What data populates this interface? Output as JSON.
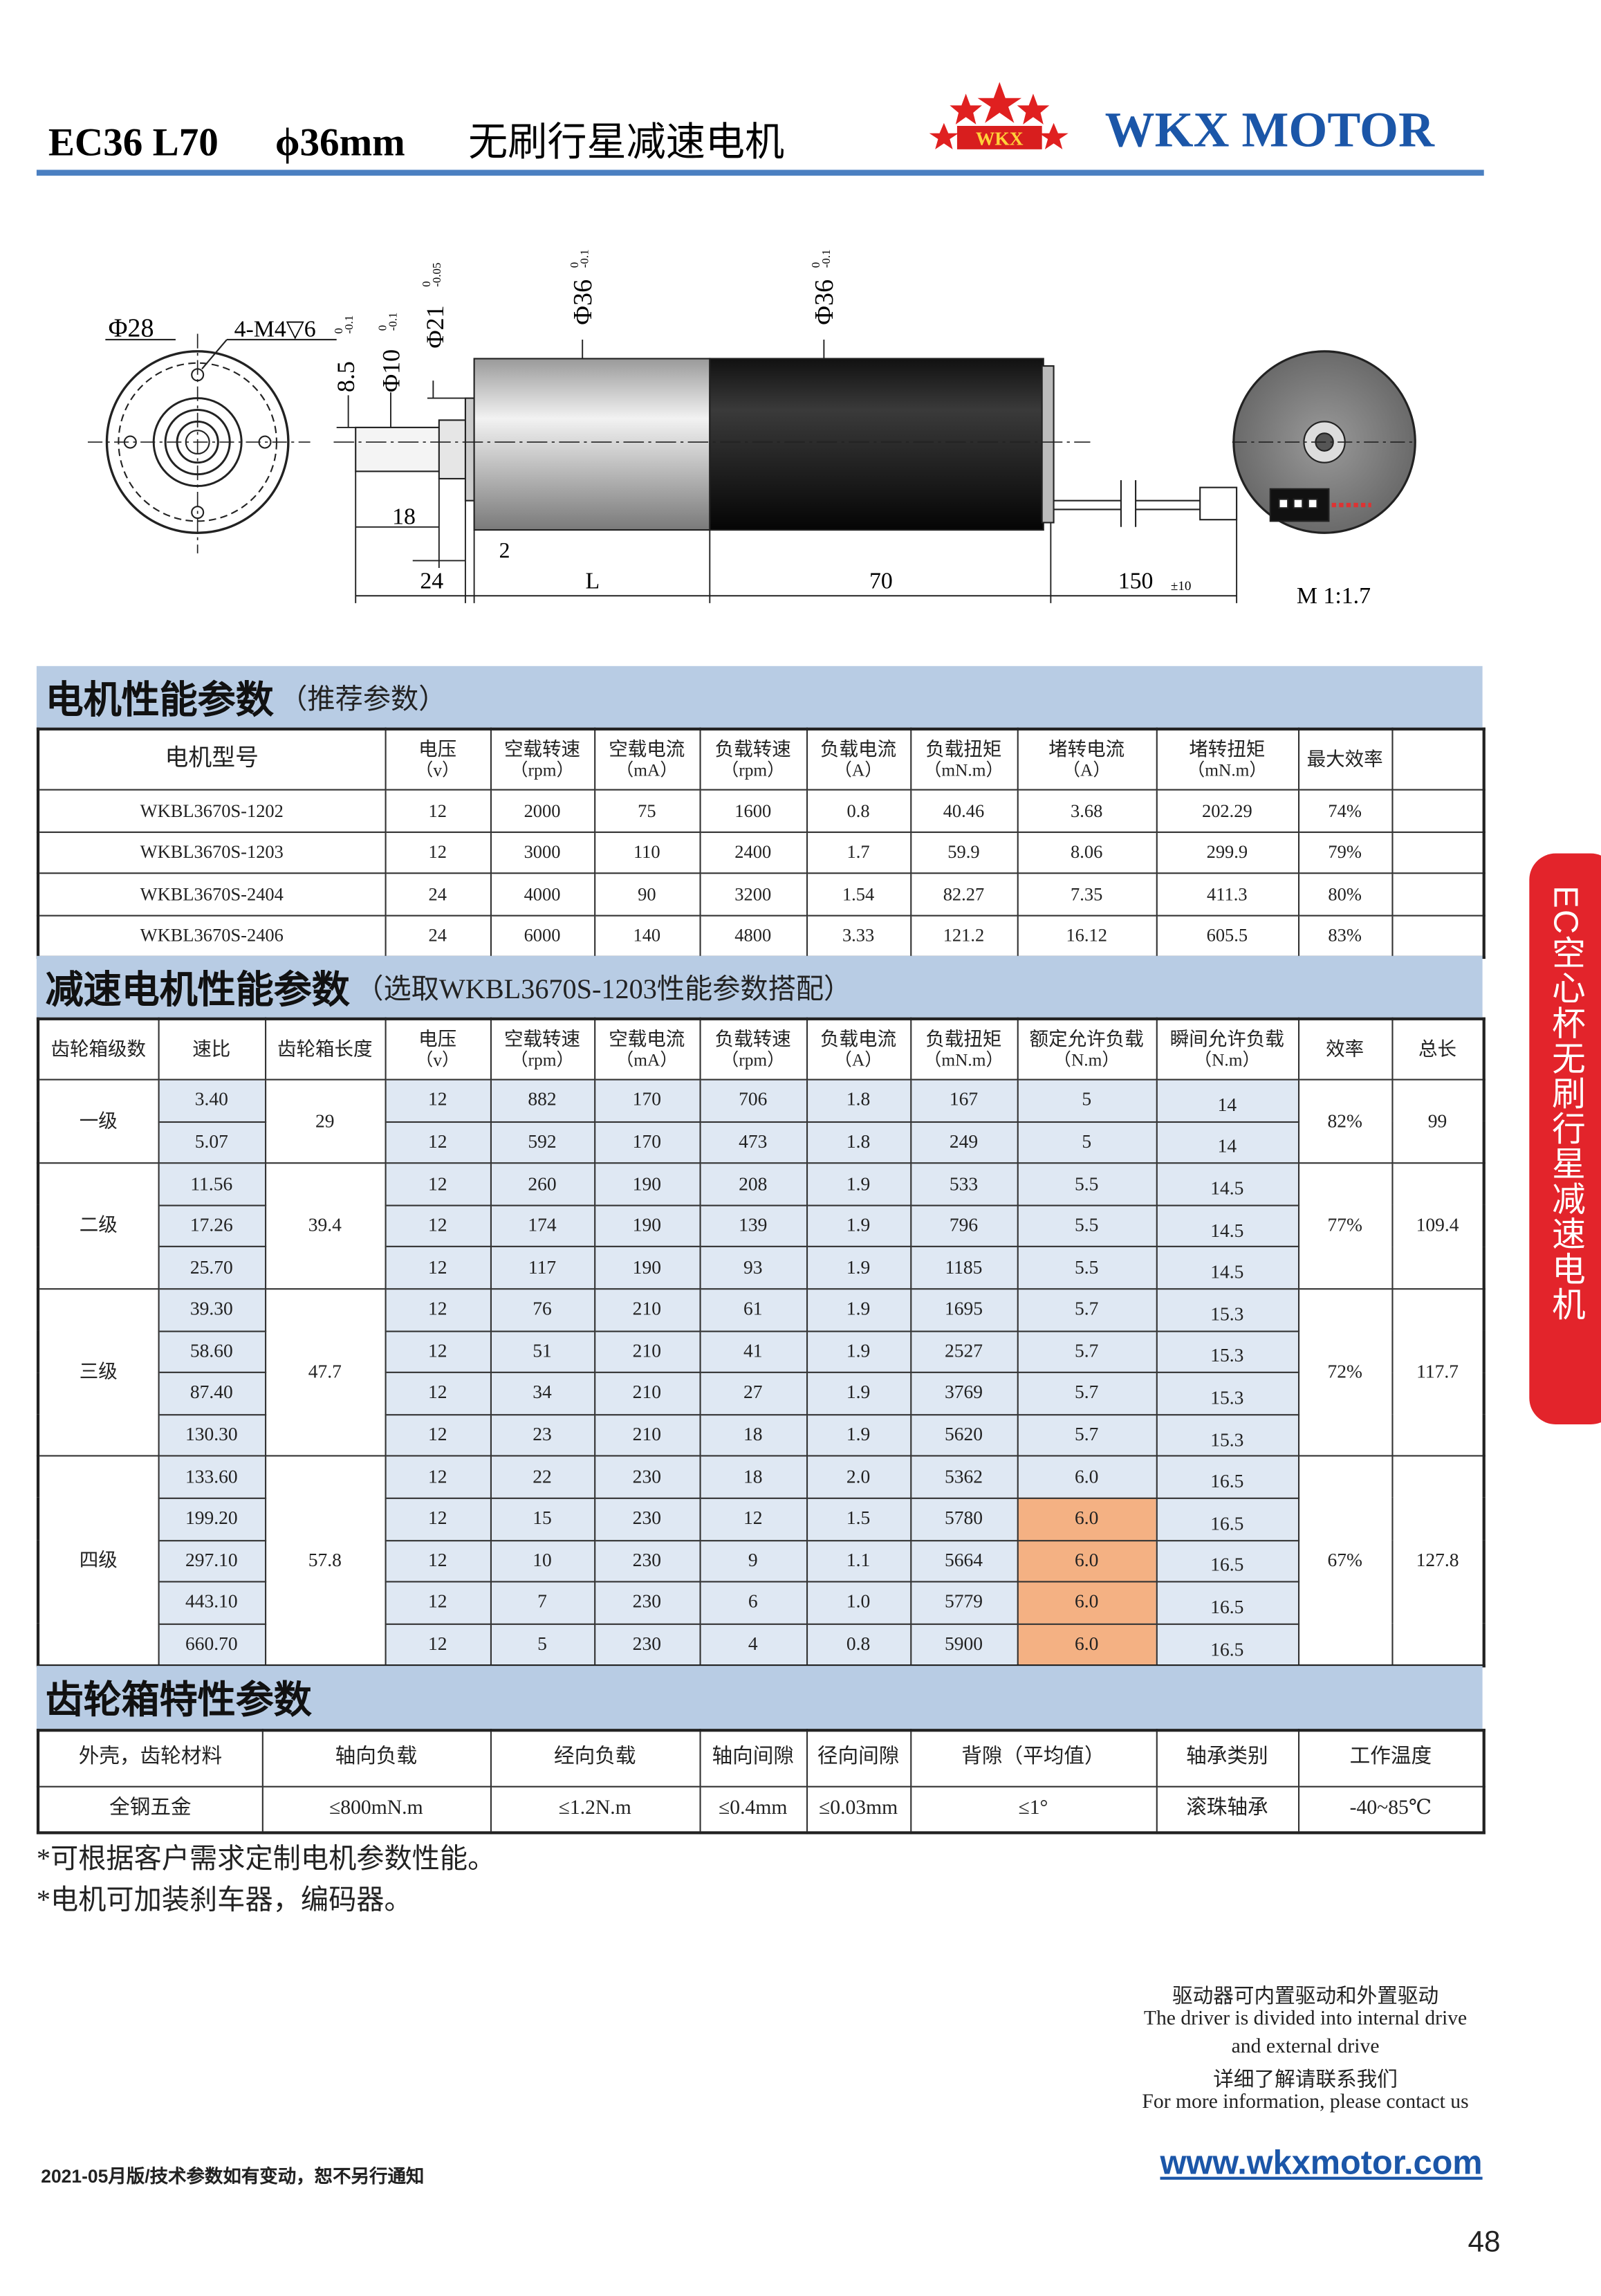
{
  "header": {
    "model": "EC36 L70",
    "diameter": "ϕ36mm",
    "title": "无刷行星减速电机",
    "logo": "WKX",
    "brand": "WKX MOTOR"
  },
  "drawing": {
    "labels": [
      "Φ28",
      "4-M4▽6",
      "8.5",
      "Φ10",
      "Φ21",
      "Φ36",
      "Φ36",
      "18",
      "2",
      "24",
      "L",
      "70",
      "150",
      "±10",
      "M 1:1.7"
    ],
    "tolerances": [
      [
        "0",
        "-0.1"
      ],
      [
        "0",
        "-0.1"
      ],
      [
        "0",
        "-0.05"
      ],
      [
        "0",
        "-0.1"
      ],
      [
        "0",
        "-0.1"
      ]
    ]
  },
  "motor_table": {
    "title": "电机性能参数",
    "subtitle": "（推荐参数）",
    "columns": [
      {
        "label": "电机型号"
      },
      {
        "label": "电压",
        "unit": "（v）"
      },
      {
        "label": "空载转速",
        "unit": "（rpm）"
      },
      {
        "label": "空载电流",
        "unit": "（mA）"
      },
      {
        "label": "负载转速",
        "unit": "（rpm）"
      },
      {
        "label": "负载电流",
        "unit": "（A）"
      },
      {
        "label": "负载扭矩",
        "unit": "（mN.m）"
      },
      {
        "label": "堵转电流",
        "unit": "（A）"
      },
      {
        "label": "堵转扭矩",
        "unit": "（mN.m）"
      },
      {
        "label": "最大效率"
      }
    ],
    "rows": [
      [
        "WKBL3670S-1202",
        "12",
        "2000",
        "75",
        "1600",
        "0.8",
        "40.46",
        "3.68",
        "202.29",
        "74%"
      ],
      [
        "WKBL3670S-1203",
        "12",
        "3000",
        "110",
        "2400",
        "1.7",
        "59.9",
        "8.06",
        "299.9",
        "79%"
      ],
      [
        "WKBL3670S-2404",
        "24",
        "4000",
        "90",
        "3200",
        "1.54",
        "82.27",
        "7.35",
        "411.3",
        "80%"
      ],
      [
        "WKBL3670S-2406",
        "24",
        "6000",
        "140",
        "4800",
        "3.33",
        "121.2",
        "16.12",
        "605.5",
        "83%"
      ]
    ]
  },
  "gear_table": {
    "title": "减速电机性能参数",
    "subtitle": "（选取WKBL3670S-1203性能参数搭配）",
    "columns": [
      {
        "label": "齿轮箱级数"
      },
      {
        "label": "速比"
      },
      {
        "label": "齿轮箱长度"
      },
      {
        "label": "电压",
        "unit": "（v）"
      },
      {
        "label": "空载转速",
        "unit": "（rpm）"
      },
      {
        "label": "空载电流",
        "unit": "（mA）"
      },
      {
        "label": "负载转速",
        "unit": "（rpm）"
      },
      {
        "label": "负载电流",
        "unit": "（A）"
      },
      {
        "label": "负载扭矩",
        "unit": "（mN.m）"
      },
      {
        "label": "额定允许负载",
        "unit": "（N.m）"
      },
      {
        "label": "瞬间允许负载",
        "unit": "（N.m）"
      },
      {
        "label": "效率"
      },
      {
        "label": "总长"
      }
    ],
    "groups": [
      {
        "stage": "一级",
        "length": "29",
        "efficiency": "82%",
        "total": "99",
        "rows": [
          [
            "3.40",
            "12",
            "882",
            "170",
            "706",
            "1.8",
            "167",
            "5",
            "14"
          ],
          [
            "5.07",
            "12",
            "592",
            "170",
            "473",
            "1.8",
            "249",
            "5",
            "14"
          ]
        ]
      },
      {
        "stage": "二级",
        "length": "39.4",
        "efficiency": "77%",
        "total": "109.4",
        "rows": [
          [
            "11.56",
            "12",
            "260",
            "190",
            "208",
            "1.9",
            "533",
            "5.5",
            "14.5"
          ],
          [
            "17.26",
            "12",
            "174",
            "190",
            "139",
            "1.9",
            "796",
            "5.5",
            "14.5"
          ],
          [
            "25.70",
            "12",
            "117",
            "190",
            "93",
            "1.9",
            "1185",
            "5.5",
            "14.5"
          ]
        ]
      },
      {
        "stage": "三级",
        "length": "47.7",
        "efficiency": "72%",
        "total": "117.7",
        "rows": [
          [
            "39.30",
            "12",
            "76",
            "210",
            "61",
            "1.9",
            "1695",
            "5.7",
            "15.3"
          ],
          [
            "58.60",
            "12",
            "51",
            "210",
            "41",
            "1.9",
            "2527",
            "5.7",
            "15.3"
          ],
          [
            "87.40",
            "12",
            "34",
            "210",
            "27",
            "1.9",
            "3769",
            "5.7",
            "15.3"
          ],
          [
            "130.30",
            "12",
            "23",
            "210",
            "18",
            "1.9",
            "5620",
            "5.7",
            "15.3"
          ]
        ]
      },
      {
        "stage": "四级",
        "length": "57.8",
        "efficiency": "67%",
        "total": "127.8",
        "rows": [
          [
            "133.60",
            "12",
            "22",
            "230",
            "18",
            "2.0",
            "5362",
            "6.0",
            "16.5"
          ],
          [
            "199.20",
            "12",
            "15",
            "230",
            "12",
            "1.5",
            "5780",
            "6.0",
            "16.5"
          ],
          [
            "297.10",
            "12",
            "10",
            "230",
            "9",
            "1.1",
            "5664",
            "6.0",
            "16.5"
          ],
          [
            "443.10",
            "12",
            "7",
            "230",
            "6",
            "1.0",
            "5779",
            "6.0",
            "16.5"
          ],
          [
            "660.70",
            "12",
            "5",
            "230",
            "4",
            "0.8",
            "5900",
            "6.0",
            "16.5"
          ]
        ]
      }
    ]
  },
  "gearbox_table": {
    "title": "齿轮箱特性参数",
    "columns": [
      "外壳，齿轮材料",
      "轴向负载",
      "经向负载",
      "轴向间隙",
      "径向间隙",
      "背隙（平均值）",
      "轴承类别",
      "工作温度"
    ],
    "values": [
      "全钢五金",
      "≤800mN.m",
      "≤1.2N.m",
      "≤0.4mm",
      "≤0.03mm",
      "≤1°",
      "滚珠轴承",
      "-40~85℃"
    ]
  },
  "notes": [
    "*可根据客户需求定制电机参数性能。",
    "*电机可加装刹车器，编码器。"
  ],
  "side_tab": "EC空心杯无刷行星减速电机",
  "contact": [
    "驱动器可内置驱动和外置驱动",
    "The driver is divided into internal drive",
    "and external drive",
    "详细了解请联系我们",
    "For more information, please contact us"
  ],
  "footer": {
    "edition": "2021-05月版/技术参数如有变动，恕不另行通知",
    "website": "www.wkxmotor.com",
    "page": "48"
  }
}
